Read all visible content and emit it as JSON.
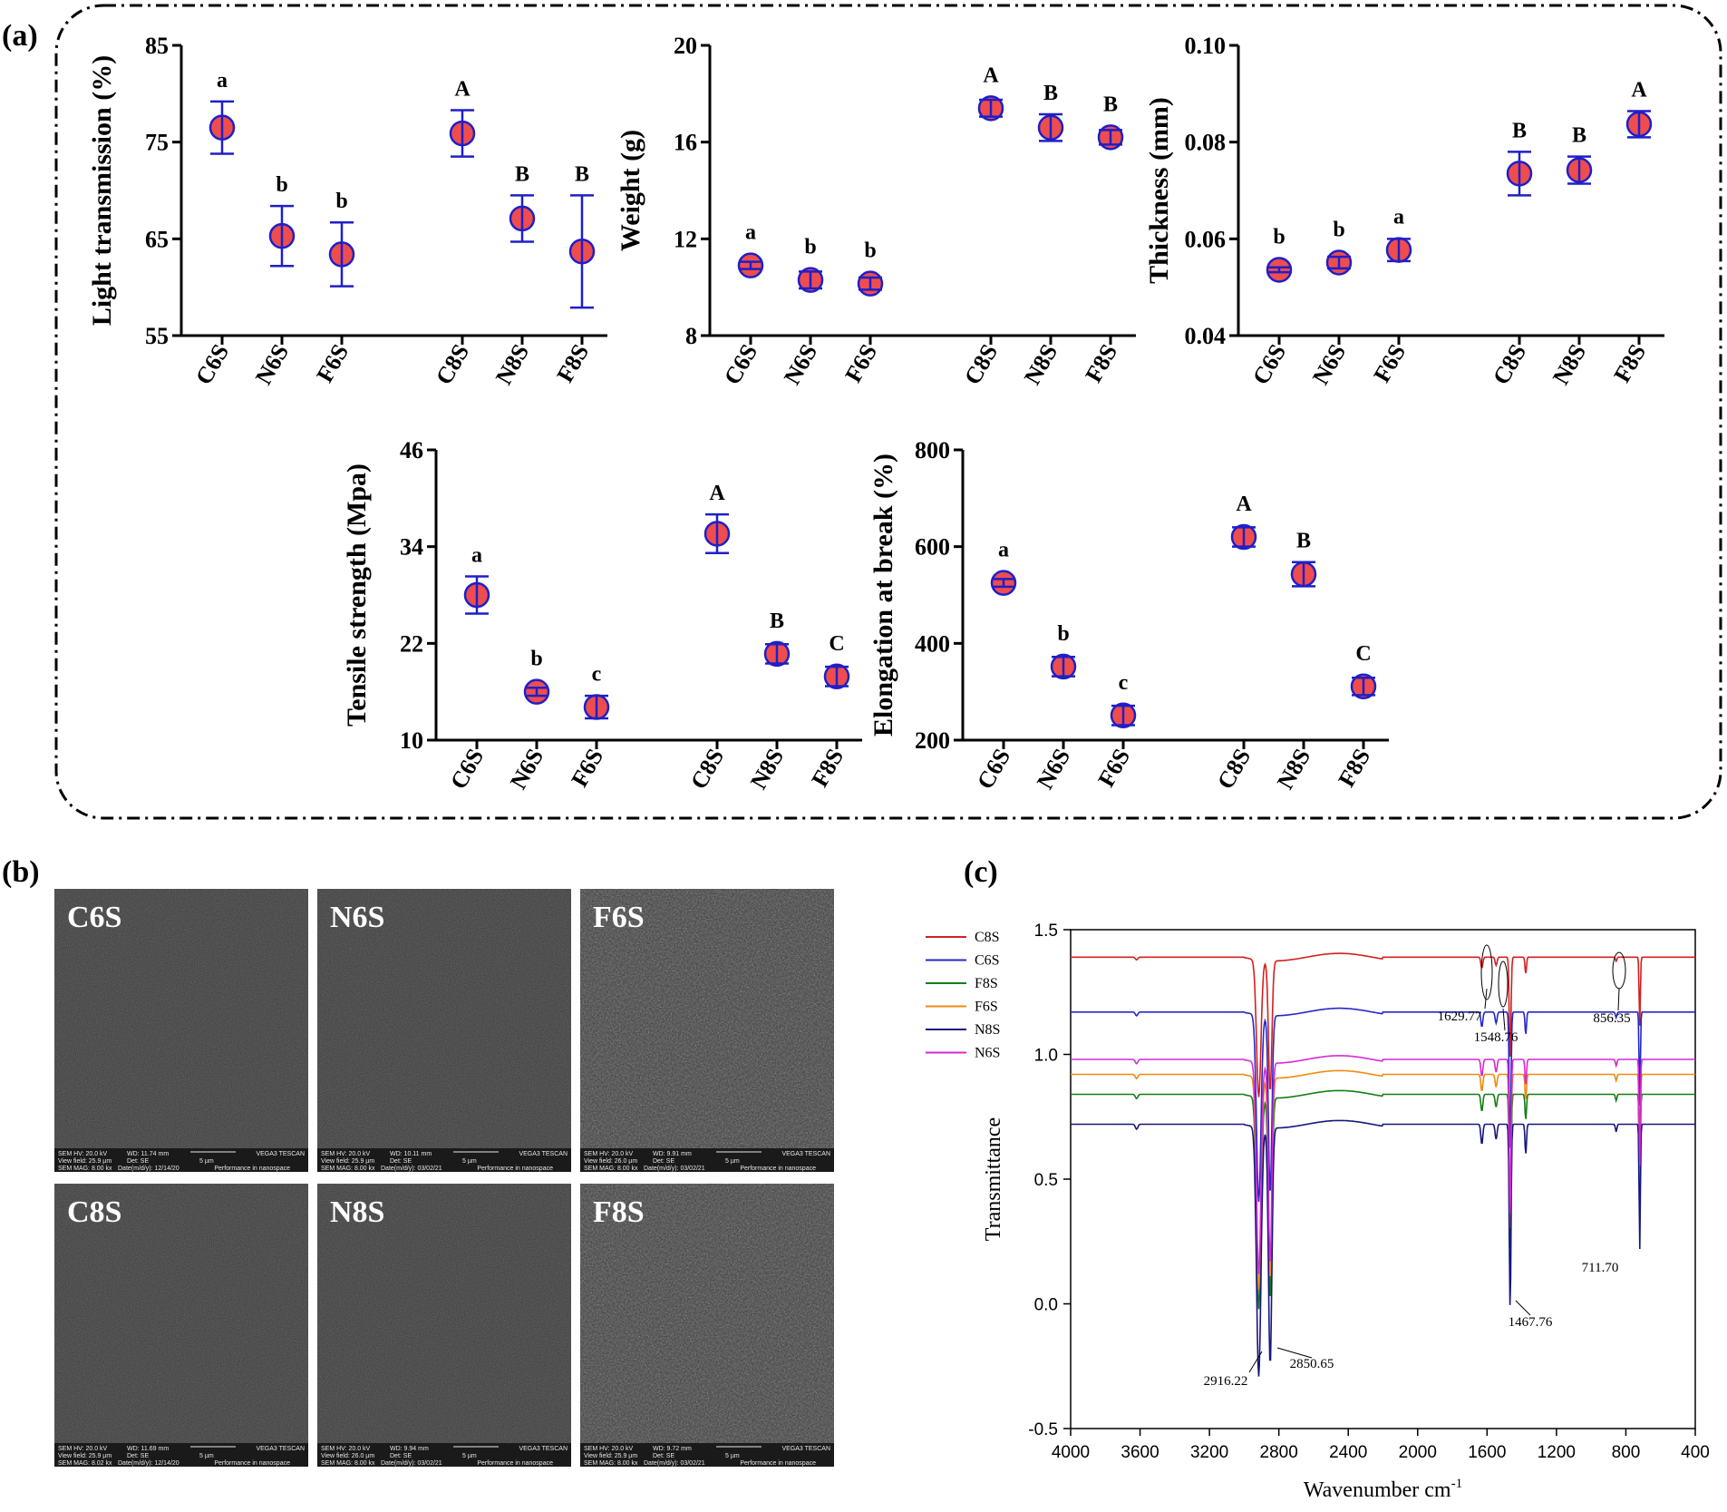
{
  "panels": {
    "a": "(a)",
    "b": "(b)",
    "c": "(c)"
  },
  "colors": {
    "marker_fill": "#ef4d4d",
    "marker_edge": "#1f1fc8",
    "errorbar": "#1f1fc8"
  },
  "chart_data": [
    {
      "type": "scatter",
      "id": "light",
      "ylabel": "Light transmission (%)",
      "ylim": [
        55,
        85
      ],
      "yticks": [
        55,
        65,
        75,
        85
      ],
      "categories": [
        "C6S",
        "N6S",
        "F6S",
        "C8S",
        "N8S",
        "F8S"
      ],
      "values": [
        76.5,
        65.3,
        63.4,
        75.9,
        67.1,
        63.7
      ],
      "errors": [
        2.7,
        3.1,
        3.3,
        2.4,
        2.4,
        5.8
      ],
      "letters": [
        "a",
        "b",
        "b",
        "A",
        "B",
        "B"
      ]
    },
    {
      "type": "scatter",
      "id": "weight",
      "ylabel": "Weight (g)",
      "ylim": [
        8,
        20
      ],
      "yticks": [
        8,
        12,
        16,
        20
      ],
      "categories": [
        "C6S",
        "N6S",
        "F6S",
        "C8S",
        "N8S",
        "F8S"
      ],
      "values": [
        10.9,
        10.3,
        10.15,
        17.4,
        16.6,
        16.2
      ],
      "errors": [
        0.15,
        0.35,
        0.25,
        0.35,
        0.55,
        0.3
      ],
      "letters": [
        "a",
        "b",
        "b",
        "A",
        "B",
        "B"
      ]
    },
    {
      "type": "scatter",
      "id": "thickness",
      "ylabel": "Thickness (mm)",
      "ylim": [
        0.04,
        0.1
      ],
      "yticks": [
        "0.04",
        "0.06",
        "0.08",
        "0.10"
      ],
      "categories": [
        "C6S",
        "N6S",
        "F6S",
        "C8S",
        "N8S",
        "F8S"
      ],
      "values": [
        0.0536,
        0.0551,
        0.0577,
        0.0735,
        0.0742,
        0.0837
      ],
      "errors": [
        0.0005,
        0.0012,
        0.0023,
        0.0045,
        0.0028,
        0.0027
      ],
      "letters": [
        "b",
        "b",
        "a",
        "B",
        "B",
        "A"
      ]
    },
    {
      "type": "scatter",
      "id": "tensile",
      "ylabel": "Tensile strength (Mpa)",
      "ylim": [
        10,
        46
      ],
      "yticks": [
        10,
        22,
        34,
        46
      ],
      "categories": [
        "C6S",
        "N6S",
        "F6S",
        "C8S",
        "N8S",
        "F8S"
      ],
      "values": [
        28.0,
        16.0,
        14.1,
        35.6,
        20.7,
        17.9
      ],
      "errors": [
        2.3,
        0.5,
        1.4,
        2.4,
        1.2,
        1.2
      ],
      "letters": [
        "a",
        "b",
        "c",
        "A",
        "B",
        "C"
      ]
    },
    {
      "type": "scatter",
      "id": "elongation",
      "ylabel": "Elongation at break (%)",
      "ylim": [
        200,
        800
      ],
      "yticks": [
        200,
        400,
        600,
        800
      ],
      "categories": [
        "C6S",
        "N6S",
        "F6S",
        "C8S",
        "N8S",
        "F8S"
      ],
      "values": [
        525,
        352,
        251,
        620,
        543,
        311
      ],
      "errors": [
        8,
        20,
        20,
        20,
        25,
        18
      ],
      "letters": [
        "a",
        "b",
        "c",
        "A",
        "B",
        "C"
      ]
    },
    {
      "type": "line",
      "id": "ftir",
      "xlabel": "Wavenumber cm",
      "xlabel_sup": "-1",
      "ylabel": "Transmittance",
      "xlim": [
        4000,
        400
      ],
      "ylim": [
        -0.5,
        1.5
      ],
      "xticks": [
        4000,
        3600,
        3200,
        2800,
        2400,
        2000,
        1600,
        1200,
        800,
        400
      ],
      "yticks": [
        "1.5",
        "1.0",
        "0.5",
        "0.0",
        "-0.5"
      ],
      "series": [
        {
          "name": "C8S",
          "color": "#d42020",
          "baseline": 1.39,
          "scale": 0.55
        },
        {
          "name": "C6S",
          "color": "#2727c9",
          "baseline": 1.17,
          "scale": 0.75
        },
        {
          "name": "F8S",
          "color": "#127f12",
          "baseline": 0.84,
          "scale": 0.85
        },
        {
          "name": "F6S",
          "color": "#ef8a10",
          "baseline": 0.92,
          "scale": 0.85
        },
        {
          "name": "N8S",
          "color": "#16167e",
          "baseline": 0.72,
          "scale": 1.0
        },
        {
          "name": "N6S",
          "color": "#d42ad4",
          "baseline": 0.98,
          "scale": 0.85
        }
      ],
      "annotations": [
        "2916.22",
        "2850.65",
        "1629.77",
        "1548.76",
        "1467.76",
        "856.35",
        "711.70"
      ]
    }
  ],
  "sem": {
    "images": [
      {
        "label": "C6S",
        "info1": "SEM HV: 20.0 kV",
        "info2": "WD: 11.74 mm",
        "info3": "VEGA3 TESCAN",
        "info4": "View field: 25.9 µm",
        "info5": "Det: SE",
        "info6": "5 µm",
        "info7": "SEM MAG: 8.00 kx",
        "info8": "Date(m/d/y): 12/14/20",
        "info9": "Performance in nanospace"
      },
      {
        "label": "N6S",
        "info1": "SEM HV: 20.0 kV",
        "info2": "WD: 10.11 mm",
        "info3": "VEGA3 TESCAN",
        "info4": "View field: 25.9 µm",
        "info5": "Det: SE",
        "info6": "5 µm",
        "info7": "SEM MAG: 8.00 kx",
        "info8": "Date(m/d/y): 03/02/21",
        "info9": "Performance in nanospace"
      },
      {
        "label": "F6S",
        "info1": "SEM HV: 20.0 kV",
        "info2": "WD: 9.91 mm",
        "info3": "VEGA3 TESCAN",
        "info4": "View field: 26.0 µm",
        "info5": "Det: SE",
        "info6": "5 µm",
        "info7": "SEM MAG: 8.00 kx",
        "info8": "Date(m/d/y): 03/02/21",
        "info9": "Performance in nanospace"
      },
      {
        "label": "C8S",
        "info1": "SEM HV: 20.0 kV",
        "info2": "WD: 11.69 mm",
        "info3": "VEGA3 TESCAN",
        "info4": "View field: 25.9 µm",
        "info5": "Det: SE",
        "info6": "5 µm",
        "info7": "SEM MAG: 8.02 kx",
        "info8": "Date(m/d/y): 12/14/20",
        "info9": "Performance in nanospace"
      },
      {
        "label": "N8S",
        "info1": "SEM HV: 20.0 kV",
        "info2": "WD: 9.94 mm",
        "info3": "VEGA3 TESCAN",
        "info4": "View field: 26.0 µm",
        "info5": "Det: SE",
        "info6": "5 µm",
        "info7": "SEM MAG: 8.00 kx",
        "info8": "Date(m/d/y): 03/02/21",
        "info9": "Performance in nanospace"
      },
      {
        "label": "F8S",
        "info1": "SEM HV: 20.0 kV",
        "info2": "WD: 9.72 mm",
        "info3": "VEGA3 TESCAN",
        "info4": "View field: 25.9 µm",
        "info5": "Det: SE",
        "info6": "5 µm",
        "info7": "SEM MAG: 8.00 kx",
        "info8": "Date(m/d/y): 03/02/21",
        "info9": "Performance in nanospace"
      }
    ]
  }
}
